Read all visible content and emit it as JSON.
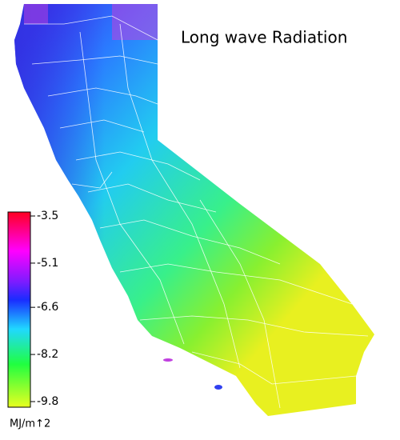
{
  "title": "Long wave Radiation",
  "legend": {
    "unit": "MJ/m↑2",
    "ticks": [
      -3.5,
      -5.1,
      -6.6,
      -8.2,
      -9.8
    ]
  }
}
